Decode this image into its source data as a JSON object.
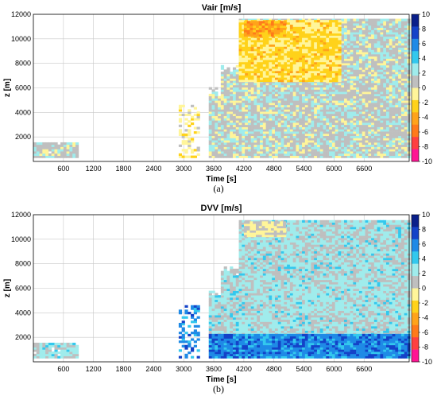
{
  "colors": {
    "colormap": [
      "#ff1493",
      "#ff4040",
      "#ff7a1a",
      "#ffa31a",
      "#ffd21a",
      "#fff59a",
      "#bfbfbf",
      "#a0ecec",
      "#33c8ee",
      "#1f8ae6",
      "#1442c8",
      "#0a1f8a"
    ],
    "grid": "#c8c8c8",
    "axis": "#000000"
  },
  "chart_data": [
    {
      "type": "heatmap",
      "panel_label": "(a)",
      "title": "Vair [m/s]",
      "xlabel": "Time [s]",
      "ylabel": "z [m]",
      "xlim": [
        0,
        7500
      ],
      "ylim": [
        0,
        12000
      ],
      "xticks": [
        600,
        1200,
        1800,
        2400,
        3000,
        3600,
        4200,
        4800,
        5400,
        6000,
        6600
      ],
      "yticks": [
        2000,
        4000,
        6000,
        8000,
        10000,
        12000
      ],
      "colorbar": {
        "min": -10,
        "max": 10,
        "ticks": [
          10,
          8,
          6,
          4,
          2,
          0,
          -2,
          -4,
          -6,
          -8,
          -10
        ]
      },
      "grid": true,
      "regions": [
        {
          "name": "low-level-block",
          "t": [
            0,
            900
          ],
          "z": [
            300,
            1500
          ],
          "value": 1
        },
        {
          "name": "convective-onset",
          "t": [
            2900,
            3300
          ],
          "z": [
            300,
            4500
          ],
          "value": -1
        },
        {
          "name": "main-cloud",
          "t": [
            3500,
            7500
          ],
          "z": [
            300,
            11500
          ],
          "value": 1
        },
        {
          "name": "upper-updraft-layer",
          "t": [
            4100,
            6100
          ],
          "z": [
            6500,
            11500
          ],
          "value": -2
        },
        {
          "name": "cloud-top-mixed",
          "t": [
            4200,
            5000
          ],
          "z": [
            10200,
            11400
          ],
          "value": -4
        }
      ]
    },
    {
      "type": "heatmap",
      "panel_label": "(b)",
      "title": "DVV [m/s]",
      "xlabel": "Time [s]",
      "ylabel": "z [m]",
      "xlim": [
        0,
        7500
      ],
      "ylim": [
        0,
        12000
      ],
      "xticks": [
        600,
        1200,
        1800,
        2400,
        3000,
        3600,
        4200,
        4800,
        5400,
        6000,
        6600
      ],
      "yticks": [
        2000,
        4000,
        6000,
        8000,
        10000,
        12000
      ],
      "colorbar": {
        "min": -10,
        "max": 10,
        "ticks": [
          10,
          8,
          6,
          4,
          2,
          0,
          -2,
          -4,
          -6,
          -8,
          -10
        ]
      },
      "grid": true,
      "regions": [
        {
          "name": "low-level-block",
          "t": [
            0,
            900
          ],
          "z": [
            300,
            1500
          ],
          "value": 2
        },
        {
          "name": "convective-onset",
          "t": [
            2900,
            3300
          ],
          "z": [
            300,
            4500
          ],
          "value": 6
        },
        {
          "name": "main-cloud",
          "t": [
            3500,
            7500
          ],
          "z": [
            2200,
            11500
          ],
          "value": 2
        },
        {
          "name": "rain-layer",
          "t": [
            3500,
            7500
          ],
          "z": [
            300,
            2200
          ],
          "value": 6
        },
        {
          "name": "cloud-top-mixed",
          "t": [
            4200,
            5000
          ],
          "z": [
            10200,
            11400
          ],
          "value": 0
        }
      ]
    }
  ]
}
